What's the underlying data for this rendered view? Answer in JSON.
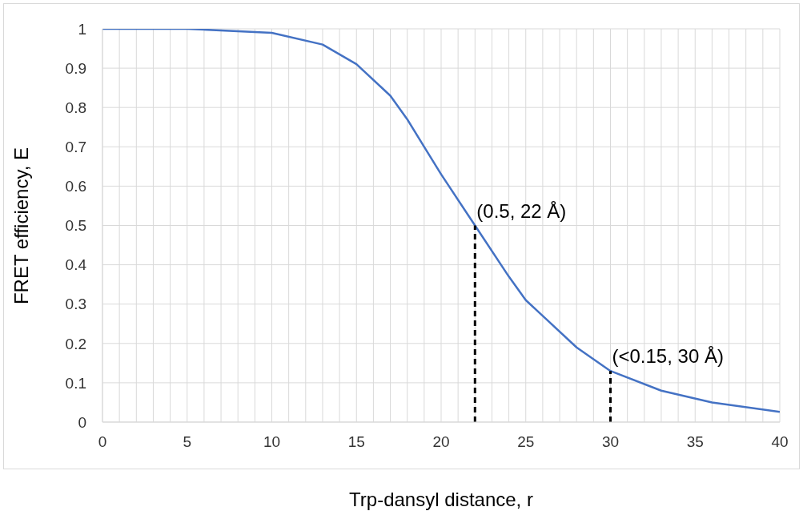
{
  "chart_data": {
    "type": "line",
    "xlabel": "Trp-dansyl distance, r",
    "ylabel": "FRET efficiency, E",
    "series": [
      {
        "color": "#4472c4",
        "line_style": "solid",
        "x": [
          0,
          5,
          10,
          13,
          15,
          17,
          18,
          19,
          20,
          22,
          24,
          25,
          26,
          28,
          30,
          33,
          36,
          40
        ],
        "values": [
          1,
          1,
          0.99,
          0.96,
          0.91,
          0.83,
          0.77,
          0.7,
          0.63,
          0.5,
          0.37,
          0.31,
          0.27,
          0.19,
          0.13,
          0.08,
          0.05,
          0.026
        ]
      },
      {
        "color": "#000000",
        "line_style": "dashed",
        "x": [
          22,
          22
        ],
        "values": [
          0,
          0.5
        ]
      },
      {
        "color": "#000000",
        "line_style": "dashed",
        "x": [
          30,
          30
        ],
        "values": [
          0,
          0.13
        ]
      }
    ],
    "annotations": [
      {
        "text": "(0.5, 22 Å)",
        "x": 22,
        "y": 0.5
      },
      {
        "text": "(<0.15, 30 Å)",
        "x": 30,
        "y": 0.13
      }
    ],
    "xlim": [
      0,
      40
    ],
    "xticks": [
      0,
      {
        "value": 1,
        "label": null
      },
      {
        "value": 2,
        "label": null
      },
      {
        "value": 3,
        "label": null
      },
      {
        "value": 4,
        "label": null
      },
      5,
      {
        "value": 6,
        "label": null
      },
      {
        "value": 7,
        "label": null
      },
      {
        "value": 8,
        "label": null
      },
      {
        "value": 9,
        "label": null
      },
      10,
      {
        "value": 11,
        "label": null
      },
      {
        "value": 12,
        "label": null
      },
      {
        "value": 13,
        "label": null
      },
      {
        "value": 14,
        "label": null
      },
      15,
      {
        "value": 16,
        "label": null
      },
      {
        "value": 17,
        "label": null
      },
      {
        "value": 18,
        "label": null
      },
      {
        "value": 19,
        "label": null
      },
      20,
      {
        "value": 21,
        "label": null
      },
      {
        "value": 22,
        "label": null
      },
      {
        "value": 23,
        "label": null
      },
      {
        "value": 24,
        "label": null
      },
      25,
      {
        "value": 26,
        "label": null
      },
      {
        "value": 27,
        "label": null
      },
      {
        "value": 28,
        "label": null
      },
      {
        "value": 29,
        "label": null
      },
      30,
      {
        "value": 31,
        "label": null
      },
      {
        "value": 32,
        "label": null
      },
      {
        "value": 33,
        "label": null
      },
      {
        "value": 34,
        "label": null
      },
      35,
      {
        "value": 36,
        "label": null
      },
      {
        "value": 37,
        "label": null
      },
      {
        "value": 38,
        "label": null
      },
      {
        "value": 39,
        "label": null
      },
      40
    ],
    "ylim": [
      0,
      1
    ],
    "yticks": [
      0,
      0.1,
      0.2,
      0.3,
      0.4,
      0.5,
      0.6,
      0.7,
      0.8,
      0.9,
      1
    ],
    "grid": true,
    "legend": false,
    "marker": "none"
  }
}
